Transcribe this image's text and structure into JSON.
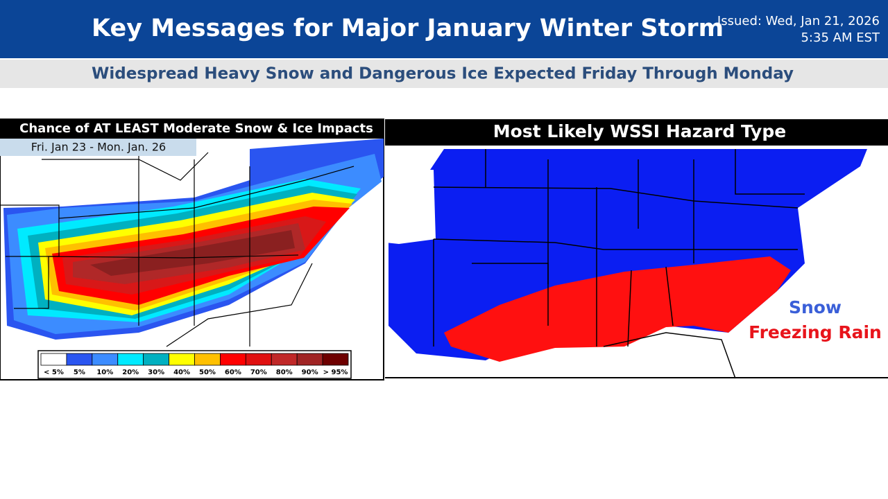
{
  "header": {
    "title": "Key Messages for Major January Winter Storm",
    "issued": [
      "Issued: Wed, Jan 21, 2026",
      "5:35 AM EST"
    ],
    "subtitle": "Widespread Heavy Snow and Dangerous Ice Expected Friday Through Monday"
  },
  "left_panel": {
    "title": "Chance of AT LEAST Moderate Snow & Ice Impacts",
    "dates": "Fri. Jan 23 - Mon. Jan. 26",
    "legend": [
      {
        "label": "< 5%",
        "color": "#ffffff"
      },
      {
        "label": "5%",
        "color": "#2a55f0"
      },
      {
        "label": "10%",
        "color": "#3c8cff"
      },
      {
        "label": "20%",
        "color": "#00eaff"
      },
      {
        "label": "30%",
        "color": "#00b0c0"
      },
      {
        "label": "40%",
        "color": "#ffff00"
      },
      {
        "label": "50%",
        "color": "#ffc000"
      },
      {
        "label": "60%",
        "color": "#ff0000"
      },
      {
        "label": "70%",
        "color": "#e01010"
      },
      {
        "label": "80%",
        "color": "#c02828"
      },
      {
        "label": "90%",
        "color": "#a02424"
      },
      {
        "label": "> 95%",
        "color": "#6e0000"
      }
    ]
  },
  "right_panel": {
    "title": "Most Likely WSSI Hazard Type",
    "legend": [
      {
        "label": "Snow",
        "color": "#3a5fd8"
      },
      {
        "label": "Freezing Rain",
        "color": "#e8141b"
      }
    ]
  }
}
